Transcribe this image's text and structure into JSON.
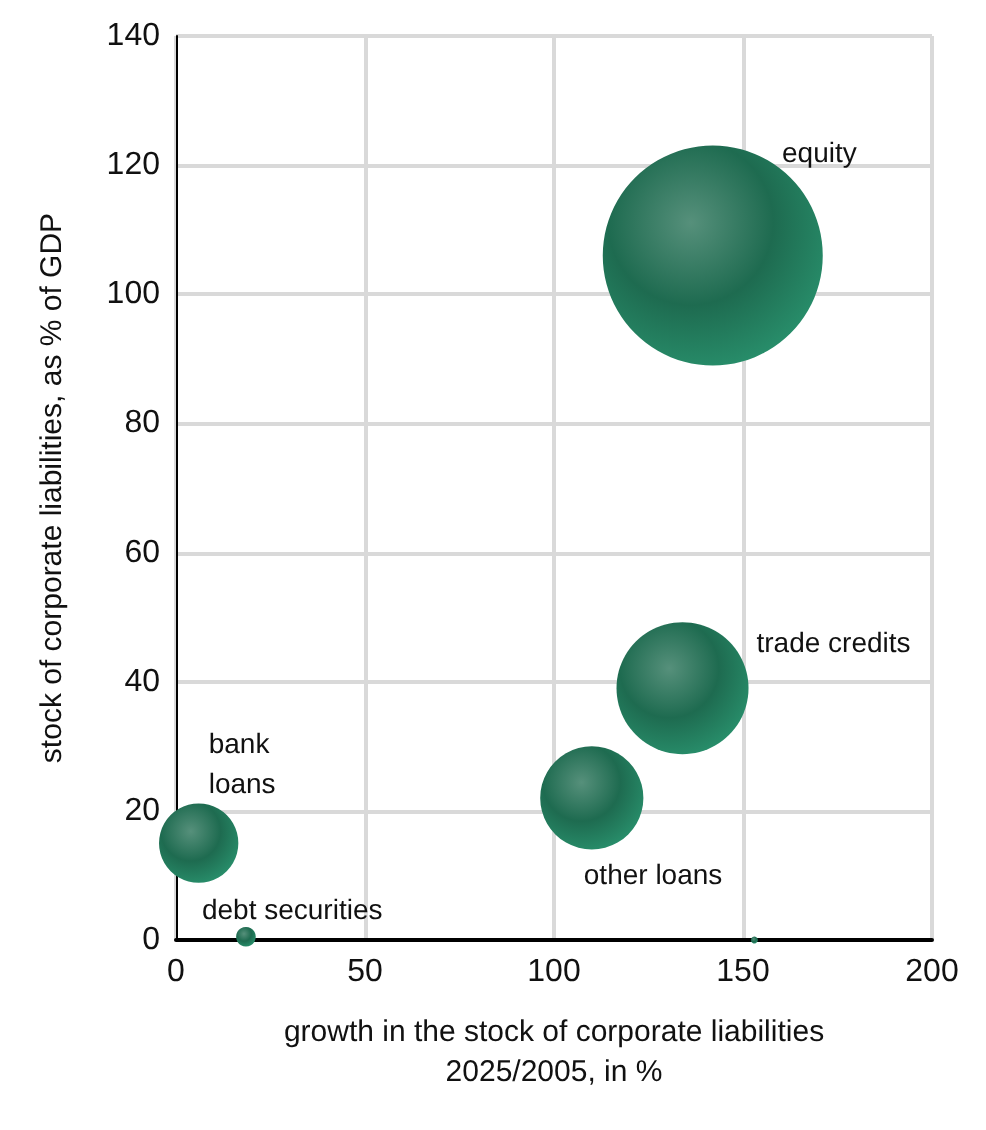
{
  "chart_data": {
    "type": "bubble",
    "xlabel": "growth in the stock of corporate liabilities\n2025/2005, in %",
    "ylabel": "stock of corporate liabilities, as % of GDP",
    "x": [
      142,
      134,
      110,
      6,
      18.5,
      153
    ],
    "values": [
      106,
      39,
      22,
      15,
      0.5,
      0
    ],
    "sizes": [
      1,
      0.36,
      0.22,
      0.13,
      0.008,
      0.001
    ],
    "color": "#1e6b50",
    "xlim": [
      0,
      200
    ],
    "xticks": [
      0,
      50,
      100,
      150,
      200
    ],
    "ylim": [
      0,
      140
    ],
    "yticks": [
      0,
      20,
      40,
      60,
      80,
      100,
      120,
      140
    ],
    "grid": true,
    "annotations": [
      "equity",
      {
        "text": "trade credits",
        "x": 134,
        "y": 39
      },
      {
        "text": "other loans",
        "x": 110,
        "y": 22
      },
      {
        "text": "bank\nloans",
        "x": 6,
        "y": 15
      },
      {
        "text": "debt securities",
        "x": 18.5,
        "y": 0.5
      }
    ]
  }
}
